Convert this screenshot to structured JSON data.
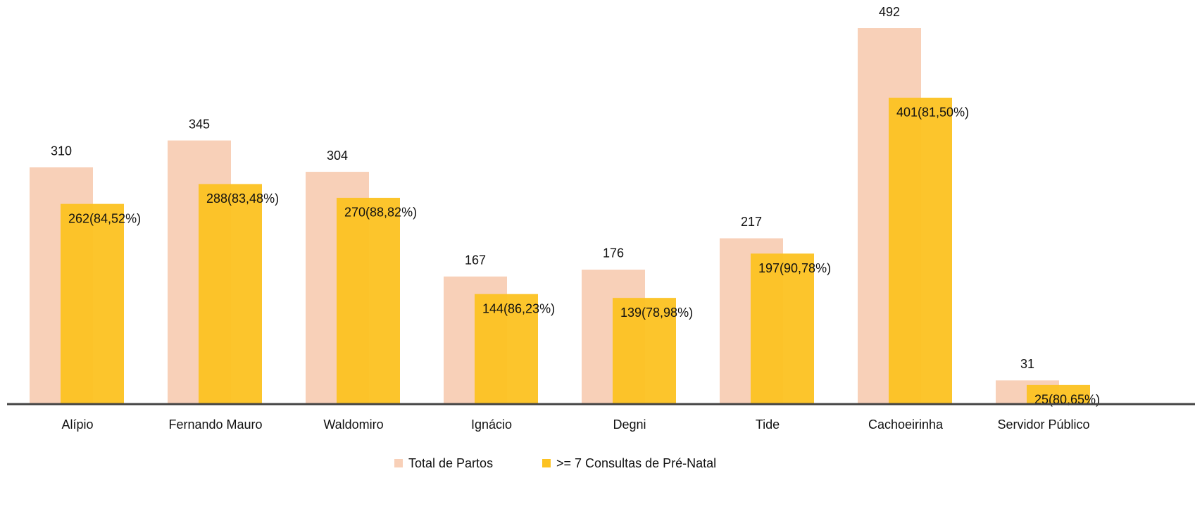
{
  "chart_data": {
    "type": "bar",
    "categories": [
      "Alípio",
      "Fernando Mauro",
      "Waldomiro",
      "Ignácio",
      "Degni",
      "Tide",
      "Cachoeirinha",
      "Servidor Público"
    ],
    "series": [
      {
        "name": "Total de Partos",
        "color": "#f8d0b8",
        "values": [
          310,
          345,
          304,
          167,
          176,
          217,
          492,
          31
        ]
      },
      {
        "name": ">= 7 Consultas de Pré-Natal",
        "color": "#fcc221",
        "values": [
          262,
          288,
          270,
          144,
          139,
          197,
          401,
          25
        ],
        "value_labels": [
          "262(84,52%)",
          "288(83,48%)",
          "270(88,82%)",
          "144(86,23%)",
          "139(78,98%)",
          "197(90,78%)",
          "401(81,50%)",
          "25(80,65%)"
        ]
      }
    ]
  }
}
